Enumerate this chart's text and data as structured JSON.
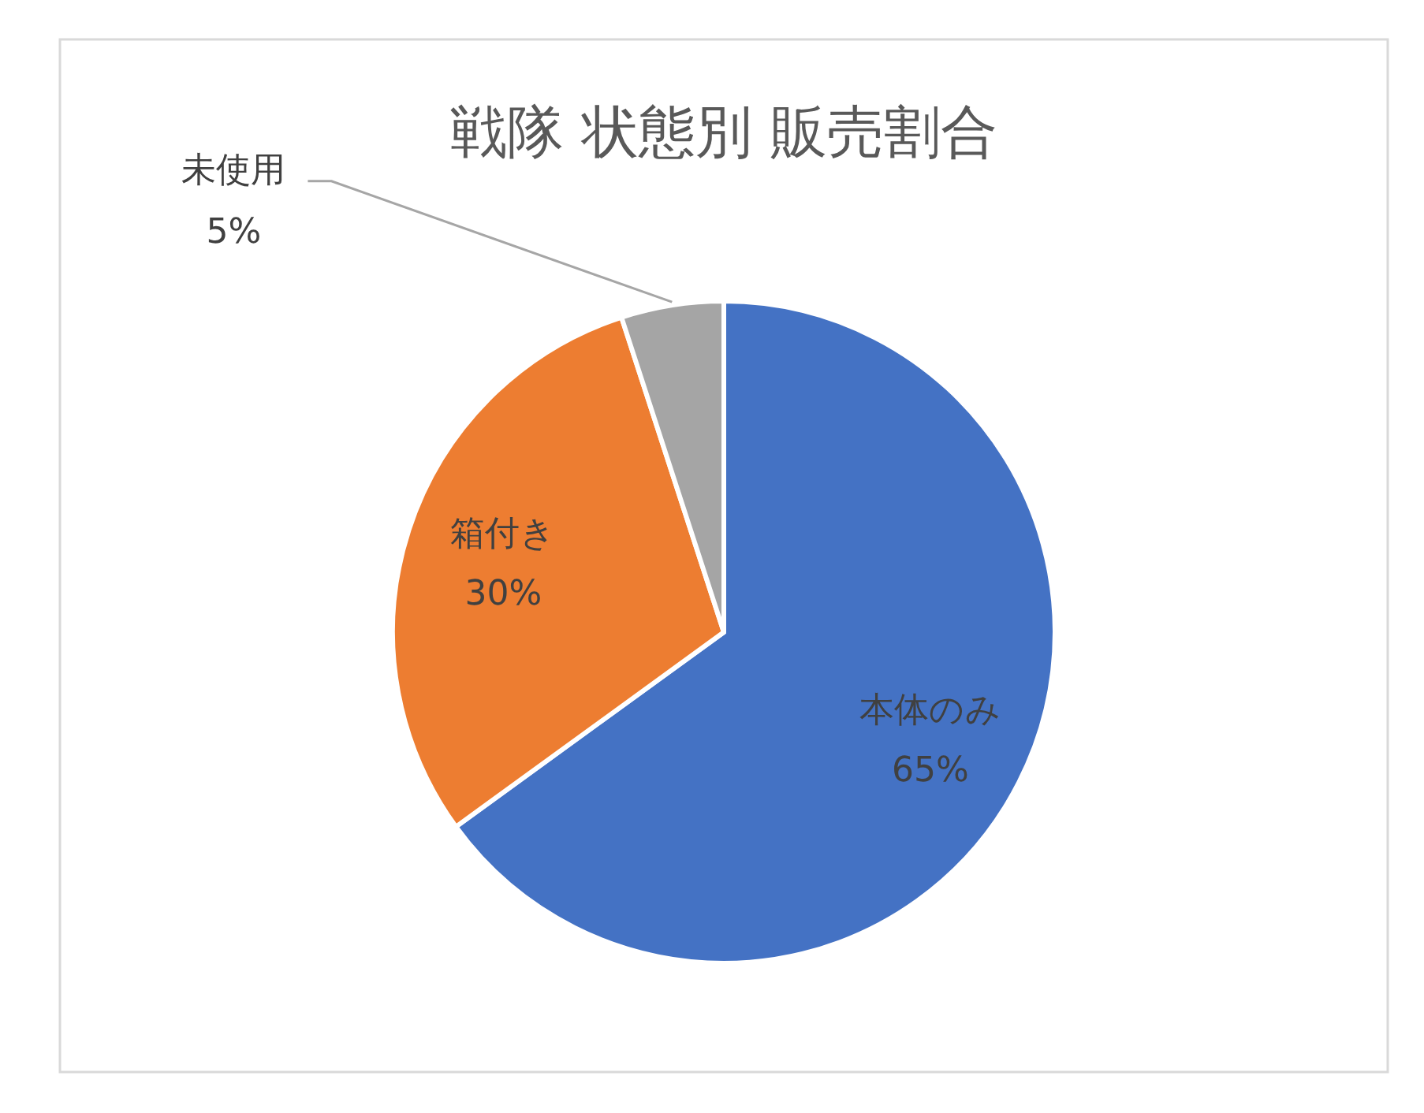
{
  "chart_data": {
    "type": "pie",
    "title": "戦隊 状態別 販売割合",
    "categories": [
      "本体のみ",
      "箱付き",
      "未使用"
    ],
    "values": [
      65,
      30,
      5
    ],
    "value_labels": [
      "65%",
      "30%",
      "5%"
    ],
    "colors": [
      "#4472c4",
      "#ed7d31",
      "#a5a5a5"
    ]
  }
}
